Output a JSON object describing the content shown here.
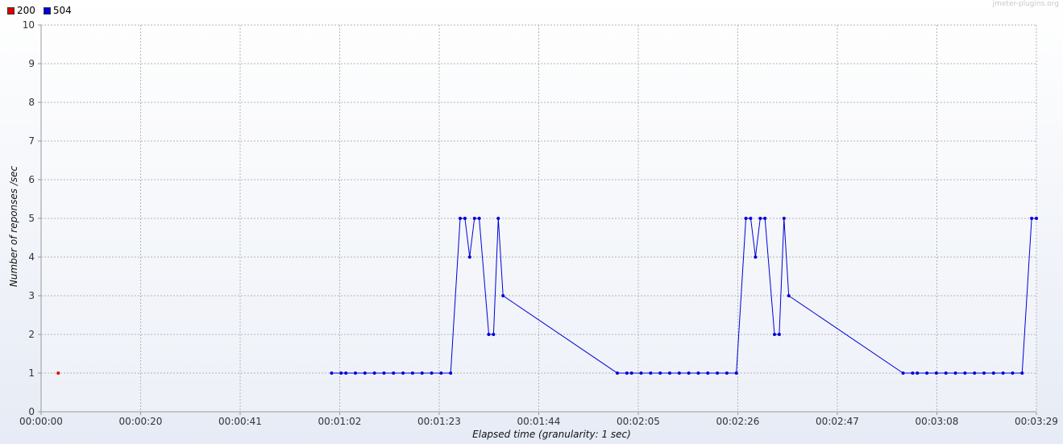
{
  "watermark": "jmeter-plugins.org",
  "chart_data": {
    "type": "line",
    "xlabel": "Elapsed time (granularity: 1 sec)",
    "ylabel": "Number of reponses /sec",
    "x_unit": "seconds",
    "xlim": [
      0,
      209
    ],
    "ylim": [
      0,
      10
    ],
    "y_ticks": [
      0,
      1,
      2,
      3,
      4,
      5,
      6,
      7,
      8,
      9,
      10
    ],
    "x_ticks": [
      {
        "value": 0,
        "label": "00:00:00"
      },
      {
        "value": 20.9,
        "label": "00:00:20"
      },
      {
        "value": 41.8,
        "label": "00:00:41"
      },
      {
        "value": 62.7,
        "label": "00:01:02"
      },
      {
        "value": 83.6,
        "label": "00:01:23"
      },
      {
        "value": 104.5,
        "label": "00:01:44"
      },
      {
        "value": 125.4,
        "label": "00:02:05"
      },
      {
        "value": 146.3,
        "label": "00:02:26"
      },
      {
        "value": 167.2,
        "label": "00:02:47"
      },
      {
        "value": 188.1,
        "label": "00:03:08"
      },
      {
        "value": 209,
        "label": "00:03:29"
      }
    ],
    "grid": true,
    "legend_position": "top-left",
    "series": [
      {
        "name": "200",
        "color": "#e00000",
        "points": [
          [
            3.6,
            1
          ]
        ]
      },
      {
        "name": "504",
        "color": "#0000d8",
        "points": [
          [
            61,
            1
          ],
          [
            63,
            1
          ],
          [
            64,
            1
          ],
          [
            66,
            1
          ],
          [
            68,
            1
          ],
          [
            70,
            1
          ],
          [
            72,
            1
          ],
          [
            74,
            1
          ],
          [
            76,
            1
          ],
          [
            78,
            1
          ],
          [
            80,
            1
          ],
          [
            82,
            1
          ],
          [
            84,
            1
          ],
          [
            86,
            1
          ],
          [
            88,
            5
          ],
          [
            89,
            5
          ],
          [
            90,
            4
          ],
          [
            91,
            5
          ],
          [
            92,
            5
          ],
          [
            94,
            2
          ],
          [
            95,
            2
          ],
          [
            96,
            5
          ],
          [
            97,
            3
          ],
          [
            121,
            1
          ],
          [
            123,
            1
          ],
          [
            124,
            1
          ],
          [
            126,
            1
          ],
          [
            128,
            1
          ],
          [
            130,
            1
          ],
          [
            132,
            1
          ],
          [
            134,
            1
          ],
          [
            136,
            1
          ],
          [
            138,
            1
          ],
          [
            140,
            1
          ],
          [
            142,
            1
          ],
          [
            144,
            1
          ],
          [
            146,
            1
          ],
          [
            148,
            5
          ],
          [
            149,
            5
          ],
          [
            150,
            4
          ],
          [
            151,
            5
          ],
          [
            152,
            5
          ],
          [
            154,
            2
          ],
          [
            155,
            2
          ],
          [
            156,
            5
          ],
          [
            157,
            3
          ],
          [
            181,
            1
          ],
          [
            183,
            1
          ],
          [
            184,
            1
          ],
          [
            186,
            1
          ],
          [
            188,
            1
          ],
          [
            190,
            1
          ],
          [
            192,
            1
          ],
          [
            194,
            1
          ],
          [
            196,
            1
          ],
          [
            198,
            1
          ],
          [
            200,
            1
          ],
          [
            202,
            1
          ],
          [
            204,
            1
          ],
          [
            206,
            1
          ],
          [
            208,
            5
          ],
          [
            209,
            5
          ]
        ]
      }
    ]
  }
}
